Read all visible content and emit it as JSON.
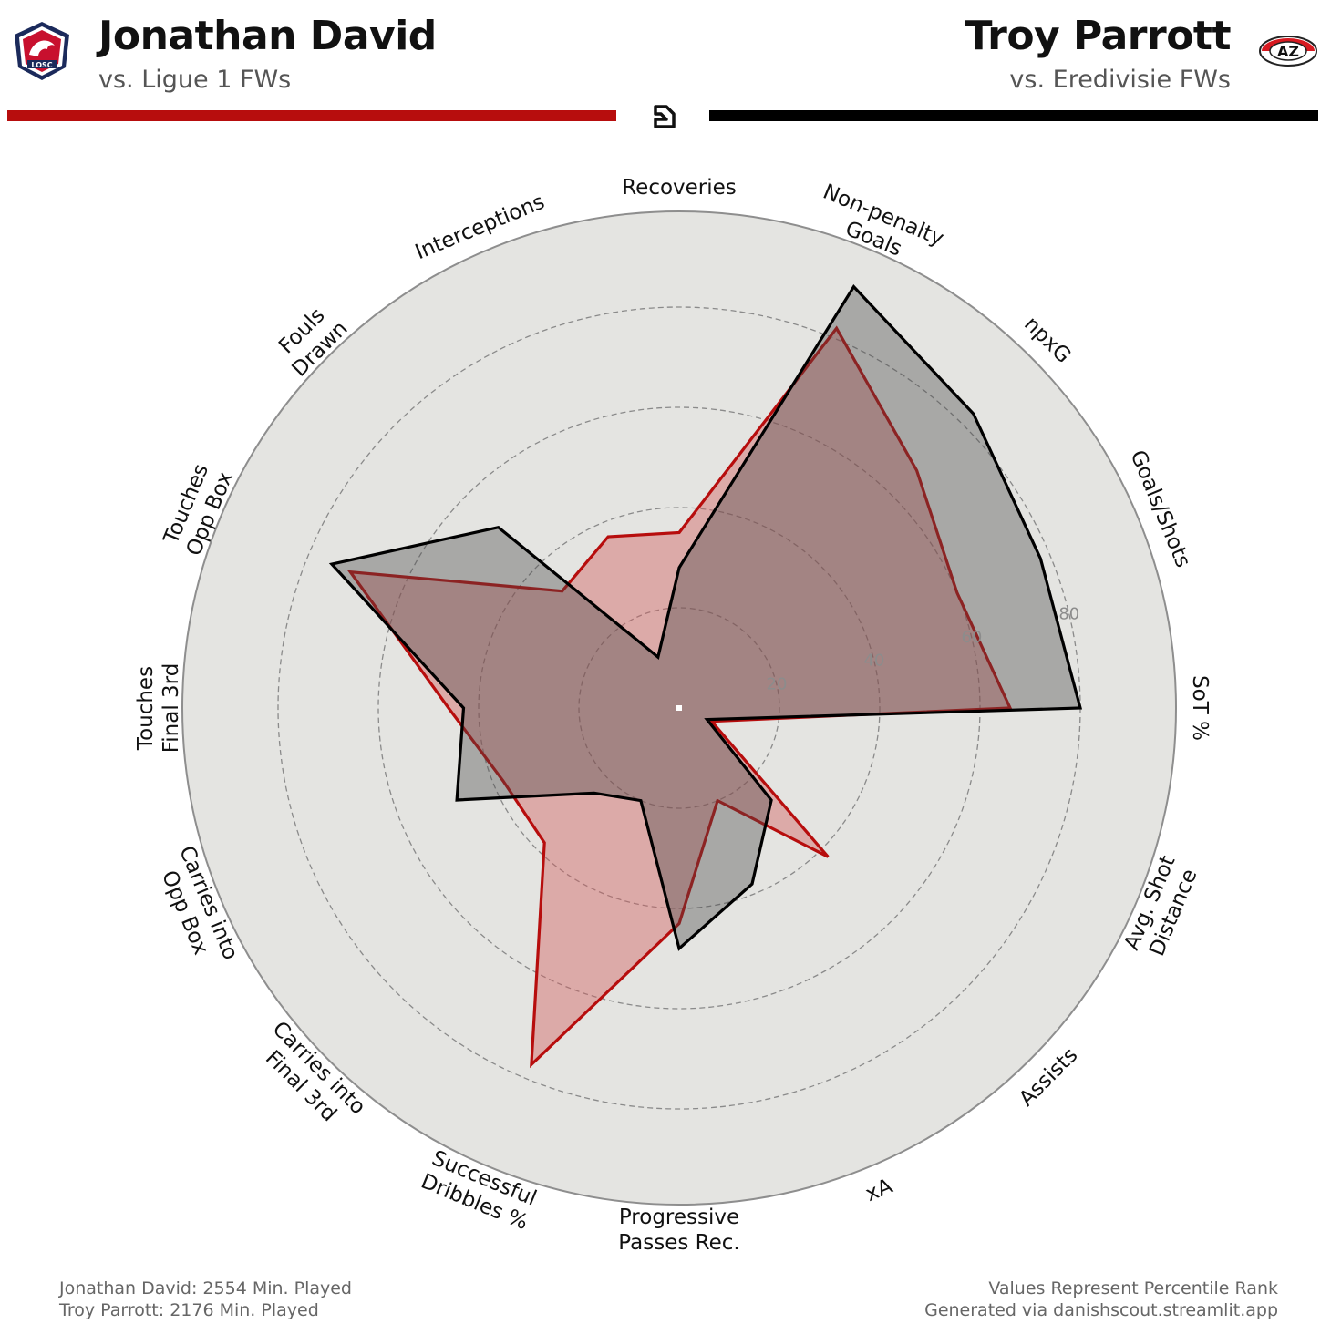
{
  "header": {
    "left": {
      "name": "Jonathan David",
      "subtitle": "vs. Ligue 1 FWs",
      "badge_text": "LOSC",
      "color": "#b70d0d"
    },
    "right": {
      "name": "Troy Parrott",
      "subtitle": "vs. Eredivisie FWs",
      "badge_text": "AZ",
      "color": "#000000"
    }
  },
  "footer": {
    "left_line1": "Jonathan David: 2554 Min. Played",
    "left_line2": "Troy Parrott: 2176 Min. Played",
    "right_line1": "Values Represent Percentile Rank",
    "right_line2": "Generated via danishscout.streamlit.app"
  },
  "chart_data": {
    "type": "radar",
    "range": [
      0,
      100
    ],
    "ring_values": [
      20,
      40,
      60,
      80
    ],
    "grid": true,
    "categories": [
      "Recoveries",
      "Non-penalty\nGoals",
      "npxG",
      "Goals/Shots",
      "SoT %",
      "Avg. Shot\nDistance",
      "Assists",
      "xA",
      "Progressive\nPasses Rec.",
      "Successful\nDribbles %",
      "Carries into\nFinal 3rd",
      "Carries into\nOpp Box",
      "Touches\nFinal 3rd",
      "Touches\nOpp Box",
      "Fouls\nDrawn",
      "Interceptions"
    ],
    "series": [
      {
        "name": "Jonathan David",
        "color": "#b70d0d",
        "fill": "rgba(210,90,90,0.42)",
        "values": [
          35,
          82,
          67,
          60,
          66,
          7,
          42,
          20,
          43,
          77,
          38,
          38,
          46,
          71,
          33,
          37
        ]
      },
      {
        "name": "Troy Parrott",
        "color": "#000000",
        "fill": "rgba(70,70,70,0.38)",
        "values": [
          28,
          91,
          83,
          78,
          80,
          6,
          26,
          38,
          48,
          20,
          24,
          48,
          43,
          75,
          51,
          11
        ]
      }
    ]
  }
}
